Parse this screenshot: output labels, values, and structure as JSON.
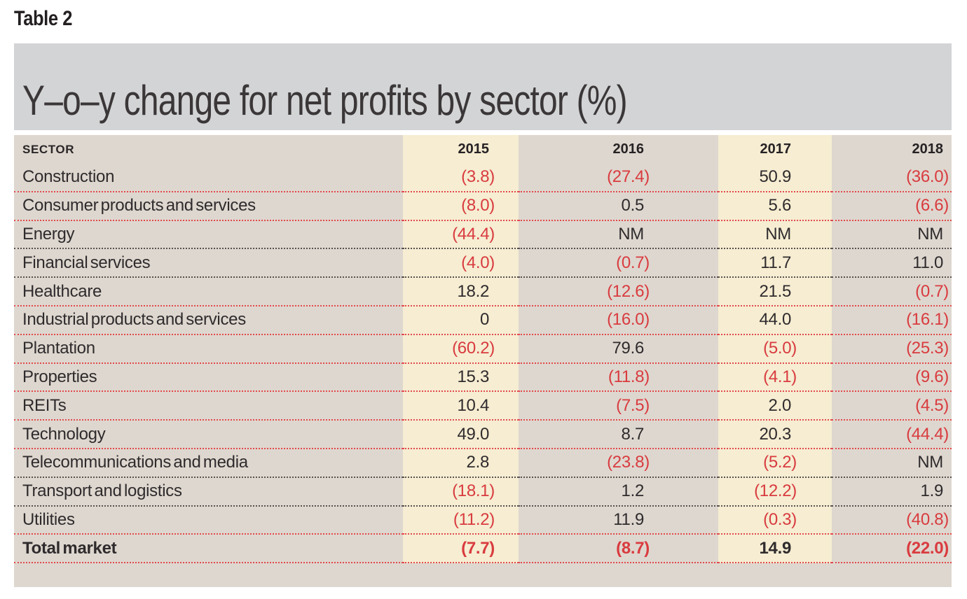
{
  "meta": {
    "table_label": "Table 2"
  },
  "chart_data": {
    "type": "table",
    "title": "Y–o–y change for net profits by sector (%)",
    "columns": [
      "SECTOR",
      "2015",
      "2016",
      "2017",
      "2018"
    ],
    "rows": [
      [
        "Construction",
        "(3.8)",
        "(27.4)",
        "50.9",
        "(36.0)"
      ],
      [
        "Consumer products and services",
        "(8.0)",
        "0.5",
        "5.6",
        "(6.6)"
      ],
      [
        "Energy",
        "(44.4)",
        "NM",
        "NM",
        "NM"
      ],
      [
        "Financial services",
        "(4.0)",
        "(0.7)",
        "11.7",
        "11.0"
      ],
      [
        "Healthcare",
        "18.2",
        "(12.6)",
        "21.5",
        "(0.7)"
      ],
      [
        "Industrial products and services",
        "0",
        "(16.0)",
        "44.0",
        "(16.1)"
      ],
      [
        "Plantation",
        "(60.2)",
        "79.6",
        "(5.0)",
        "(25.3)"
      ],
      [
        "Properties",
        "15.3",
        "(11.8)",
        "(4.1)",
        "(9.6)"
      ],
      [
        "REITs",
        "10.4",
        "(7.5)",
        "2.0",
        "(4.5)"
      ],
      [
        "Technology",
        "49.0",
        "8.7",
        "20.3",
        "(44.4)"
      ],
      [
        "Telecommunications and media",
        "2.8",
        "(23.8)",
        "(5.2)",
        "NM"
      ],
      [
        "Transport and logistics",
        "(18.1)",
        "1.2",
        "(12.2)",
        "1.9"
      ],
      [
        "Utilities",
        "(11.2)",
        "11.9",
        "(0.3)",
        "(40.8)"
      ],
      [
        "Total market",
        "(7.7)",
        "(8.7)",
        "14.9",
        "(22.0)"
      ]
    ],
    "negative_format": "parentheses shown in red",
    "total_row_label": "Total market"
  },
  "row_separators": [
    "red",
    "red",
    "dark",
    "dark",
    "red",
    "red",
    "red",
    "red",
    "red",
    "red",
    "dark",
    "dark",
    "red",
    "red"
  ],
  "colors": {
    "cream": "#f6edd2",
    "beige": "#ded7cf",
    "band": "#d3d4d6",
    "negative": "#d93b3f",
    "ink": "#2f2b2d",
    "sepRed": "#e2494c",
    "sepDark": "#57514f"
  }
}
